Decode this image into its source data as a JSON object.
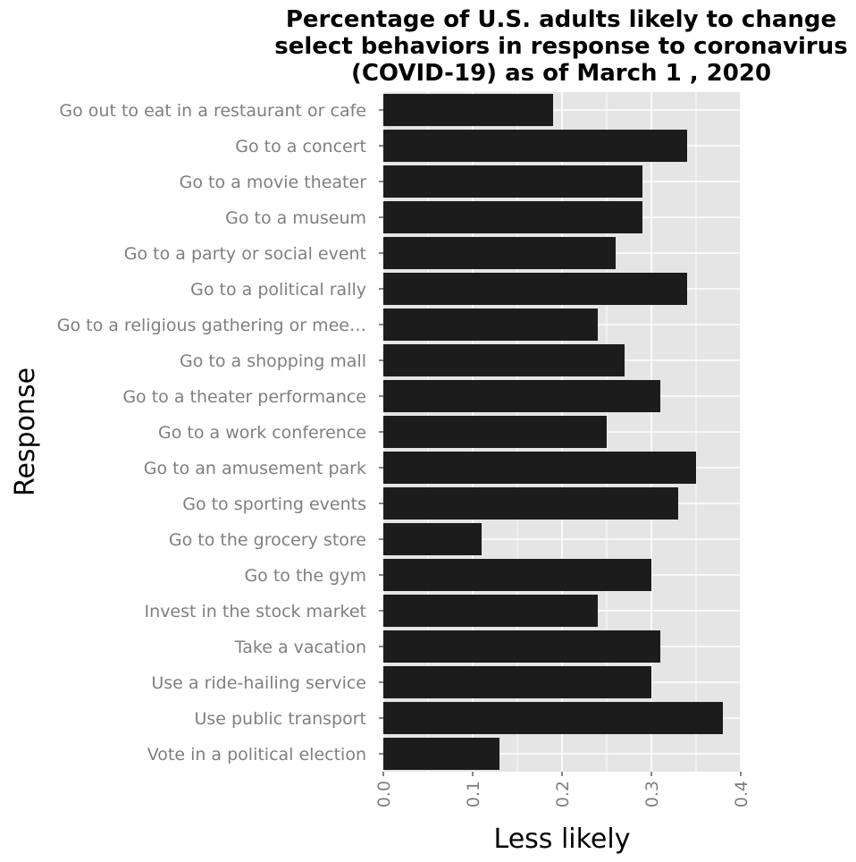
{
  "chart_data": {
    "type": "bar",
    "orientation": "horizontal",
    "title_lines": [
      "Percentage of U.S. adults likely to change",
      "select behaviors in response to coronavirus",
      "(COVID-19) as of March 1 , 2020"
    ],
    "xlabel": "Less likely",
    "ylabel": "Response",
    "categories": [
      "Go out to eat in a restaurant or cafe",
      "Go to a concert",
      "Go to a movie theater",
      "Go to a museum",
      "Go to a party or social event",
      "Go to a political rally",
      "Go to a religious gathering or mee…",
      "Go to a shopping mall",
      "Go to a theater performance",
      "Go to a work conference",
      "Go to an amusement park",
      "Go to sporting events",
      "Go to the grocery store",
      "Go to the gym",
      "Invest in the stock market",
      "Take a vacation",
      "Use a ride-hailing service",
      "Use public transport",
      "Vote in a political election"
    ],
    "values": [
      0.19,
      0.34,
      0.29,
      0.29,
      0.26,
      0.34,
      0.24,
      0.27,
      0.31,
      0.25,
      0.35,
      0.33,
      0.11,
      0.3,
      0.24,
      0.31,
      0.3,
      0.38,
      0.13
    ],
    "xlim": [
      0,
      0.4
    ],
    "xticks": [
      "0.0",
      "0.1",
      "0.2",
      "0.3",
      "0.4"
    ],
    "xtick_values": [
      0,
      0.1,
      0.2,
      0.3,
      0.4
    ],
    "grid": true,
    "colors": {
      "bar": "#1c1c1c",
      "panel": "#e5e5e5",
      "gridline": "#ffffff",
      "tick_text": "#7f7f7f"
    }
  }
}
